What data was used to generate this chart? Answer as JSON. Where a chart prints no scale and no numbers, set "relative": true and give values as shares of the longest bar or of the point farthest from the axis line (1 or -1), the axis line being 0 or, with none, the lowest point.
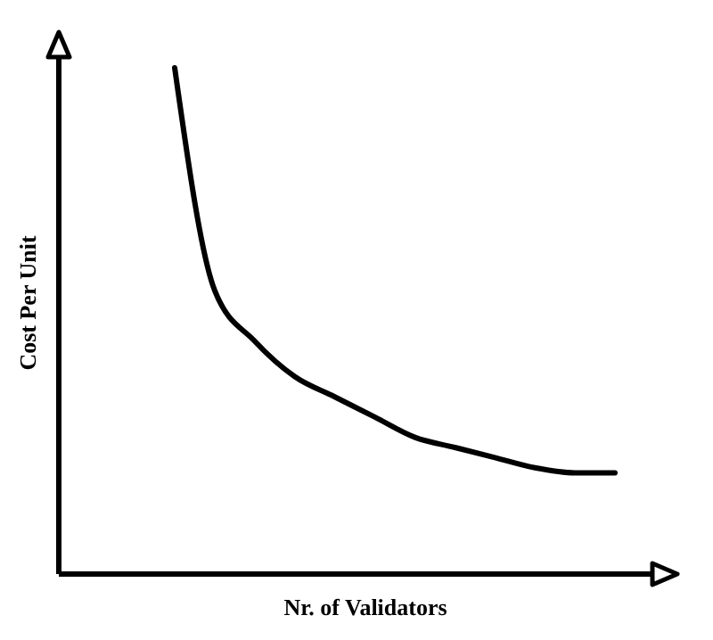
{
  "chart_data": {
    "type": "line",
    "xlabel": "Nr. of Validators",
    "ylabel": "Cost Per Unit",
    "relative": true,
    "categories": [
      null,
      null,
      null,
      null,
      null,
      null,
      null,
      null,
      null,
      null,
      null,
      null
    ],
    "series": [
      {
        "color": "#000000",
        "values": [
          1,
          0.56,
          0.46,
          0.39,
          0.35,
          0.31,
          0.27,
          0.25,
          0.23,
          0.21,
          0.2,
          0.2
        ]
      }
    ]
  }
}
